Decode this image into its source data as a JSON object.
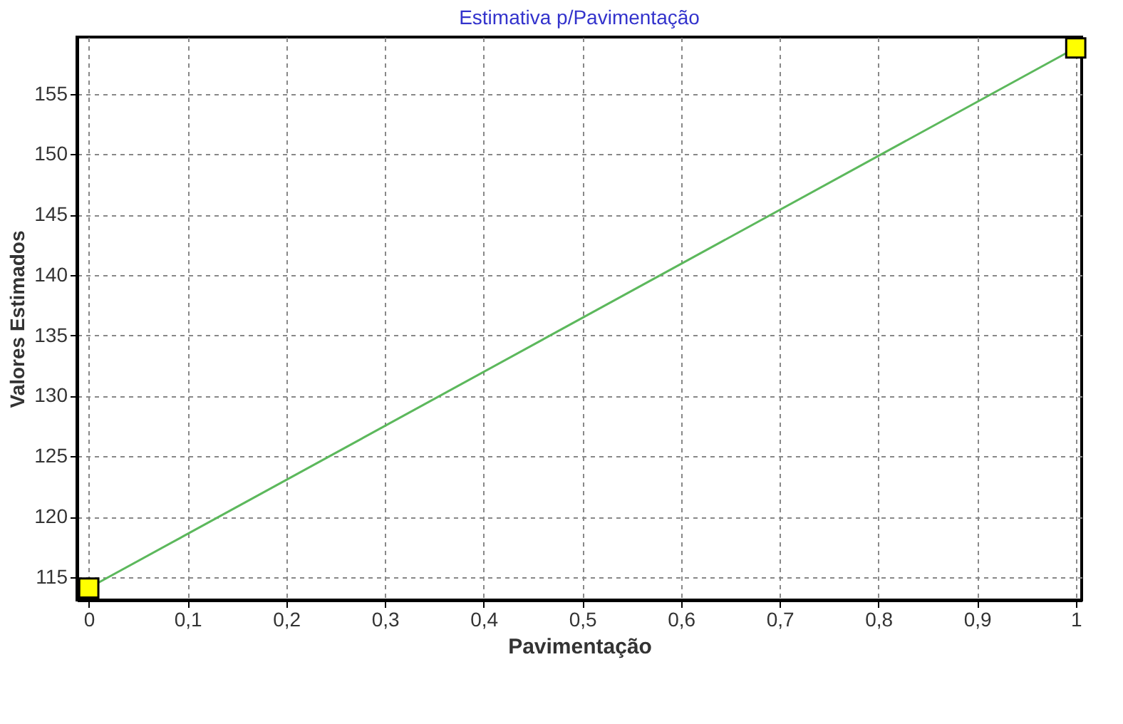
{
  "chart_data": {
    "type": "line",
    "title": "Estimativa p/Pavimentação",
    "xlabel": "Pavimentação",
    "ylabel": "Valores Estimados",
    "x": [
      0,
      1
    ],
    "series": [
      {
        "color": "#5cb85c",
        "values": [
          114.1,
          158.8
        ]
      }
    ],
    "xlim": [
      -0.012,
      1.006
    ],
    "ylim": [
      113.1,
      159.7
    ],
    "xticks": [
      0,
      {
        "value": 0.1,
        "label": "0,1"
      },
      {
        "value": 0.2,
        "label": "0,2"
      },
      {
        "value": 0.3,
        "label": "0,3"
      },
      {
        "value": 0.4,
        "label": "0,4"
      },
      {
        "value": 0.5,
        "label": "0,5"
      },
      {
        "value": 0.6,
        "label": "0,6"
      },
      {
        "value": 0.7,
        "label": "0,7"
      },
      {
        "value": 0.8,
        "label": "0,8"
      },
      {
        "value": 0.9,
        "label": "0,9"
      },
      1
    ],
    "yticks": [
      115,
      120,
      125,
      130,
      135,
      140,
      145,
      150,
      155
    ],
    "grid": true,
    "marker": "square",
    "line_style": "solid"
  }
}
